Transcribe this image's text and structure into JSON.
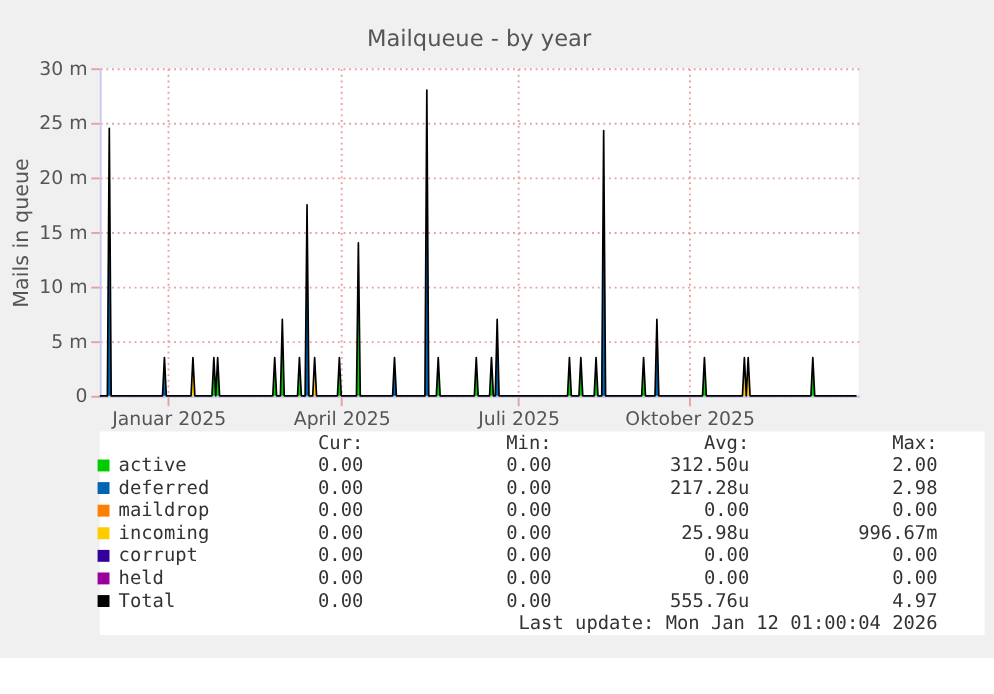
{
  "chart_data": {
    "type": "area",
    "title": "Mailqueue - by year",
    "ylabel": "Mails in queue",
    "xlim": [
      "2024-12-10",
      "2026-01-13"
    ],
    "ylim": [
      0,
      30
    ],
    "xticks": [
      {
        "value": "2025-01-15",
        "label": "Januar 2025"
      },
      {
        "value": "2025-04-16",
        "label": "April 2025"
      },
      {
        "value": "2025-07-18",
        "label": "Juli 2025"
      },
      {
        "value": "2025-10-16",
        "label": "Oktober 2025"
      }
    ],
    "yticks": [
      0,
      {
        "value": 5,
        "label": "5 m"
      },
      {
        "value": 10,
        "label": "10 m"
      },
      {
        "value": 15,
        "label": "15 m"
      },
      {
        "value": 20,
        "label": "20 m"
      },
      {
        "value": 25,
        "label": "25 m"
      },
      {
        "value": 30,
        "label": "30 m"
      }
    ],
    "grid": true,
    "legend": "bottom",
    "marker": "none",
    "line_style": "solid",
    "series": [
      {
        "name": "active",
        "color": "#00cc00",
        "x": [
          "2025-02-07",
          "2025-02-08",
          "2025-02-09",
          "2025-02-10",
          "2025-02-11",
          "2025-03-11",
          "2025-03-12",
          "2025-03-13",
          "2025-03-15",
          "2025-03-16",
          "2025-03-17",
          "2025-03-24",
          "2025-03-25",
          "2025-03-26",
          "2025-04-14",
          "2025-04-15",
          "2025-04-16",
          "2025-04-24",
          "2025-04-25",
          "2025-04-26",
          "2025-06-05",
          "2025-06-06",
          "2025-06-07",
          "2025-06-25",
          "2025-06-26",
          "2025-06-27",
          "2025-07-03",
          "2025-07-04",
          "2025-07-05",
          "2025-08-13",
          "2025-08-14",
          "2025-08-15",
          "2025-08-19",
          "2025-08-20",
          "2025-08-21",
          "2025-08-27",
          "2025-08-28",
          "2025-08-29",
          "2025-09-21",
          "2025-09-22",
          "2025-09-23",
          "2025-10-23",
          "2025-10-24",
          "2025-10-25",
          "2025-12-19",
          "2025-12-20",
          "2025-12-21"
        ],
        "values": [
          0,
          3.5,
          0,
          3.5,
          0,
          0,
          3.5,
          0,
          0,
          7,
          0,
          0,
          3.5,
          0,
          0,
          3.5,
          0,
          0,
          14,
          0,
          0,
          3.5,
          0,
          0,
          3.5,
          0,
          0,
          3.5,
          0,
          0,
          3.5,
          0,
          0,
          3.5,
          0,
          0,
          3.5,
          0,
          0,
          3.5,
          0,
          0,
          3.5,
          0,
          0,
          3.5,
          0
        ]
      },
      {
        "name": "deferred",
        "color": "#0066b3",
        "x": [
          "2024-12-14",
          "2024-12-15",
          "2024-12-16",
          "2025-01-12",
          "2025-01-13",
          "2025-01-14",
          "2025-03-28",
          "2025-03-29",
          "2025-03-30",
          "2025-05-13",
          "2025-05-14",
          "2025-05-15",
          "2025-05-30",
          "2025-05-31",
          "2025-06-01",
          "2025-07-06",
          "2025-07-07",
          "2025-07-08",
          "2025-08-31",
          "2025-09-01",
          "2025-09-02",
          "2025-09-28",
          "2025-09-29",
          "2025-09-30"
        ],
        "values": [
          0,
          24.5,
          0,
          0,
          3.5,
          0,
          0,
          17.5,
          0,
          0,
          3.5,
          0,
          0,
          28,
          0,
          0,
          7,
          0,
          0,
          24.3,
          0,
          0,
          7,
          0
        ]
      },
      {
        "name": "maildrop",
        "color": "#ff8000"
      },
      {
        "name": "incoming",
        "color": "#ffcc00",
        "x": [
          "2025-01-27",
          "2025-01-28",
          "2025-01-29",
          "2025-04-01",
          "2025-04-02",
          "2025-04-03",
          "2025-11-13",
          "2025-11-14",
          "2025-11-15",
          "2025-11-16",
          "2025-11-17"
        ],
        "values": [
          0,
          3.5,
          0,
          0,
          3.5,
          0,
          0,
          3.5,
          0,
          3.5,
          0
        ]
      },
      {
        "name": "corrupt",
        "color": "#330099"
      },
      {
        "name": "held",
        "color": "#990099"
      },
      {
        "name": "Total",
        "color": "#000000",
        "type": "line",
        "x": [
          "2024-12-10",
          "2024-12-14",
          "2024-12-15",
          "2024-12-16",
          "2025-01-12",
          "2025-01-13",
          "2025-01-14",
          "2025-01-27",
          "2025-01-28",
          "2025-01-29",
          "2025-02-07",
          "2025-02-08",
          "2025-02-09",
          "2025-02-10",
          "2025-02-11",
          "2025-03-11",
          "2025-03-12",
          "2025-03-13",
          "2025-03-15",
          "2025-03-16",
          "2025-03-17",
          "2025-03-24",
          "2025-03-25",
          "2025-03-26",
          "2025-03-28",
          "2025-03-29",
          "2025-03-30",
          "2025-04-01",
          "2025-04-02",
          "2025-04-03",
          "2025-04-14",
          "2025-04-15",
          "2025-04-16",
          "2025-04-24",
          "2025-04-25",
          "2025-04-26",
          "2025-05-13",
          "2025-05-14",
          "2025-05-15",
          "2025-05-30",
          "2025-05-31",
          "2025-06-01",
          "2025-06-05",
          "2025-06-06",
          "2025-06-07",
          "2025-06-25",
          "2025-06-26",
          "2025-06-27",
          "2025-07-03",
          "2025-07-04",
          "2025-07-05",
          "2025-07-06",
          "2025-07-07",
          "2025-07-08",
          "2025-08-13",
          "2025-08-14",
          "2025-08-15",
          "2025-08-19",
          "2025-08-20",
          "2025-08-21",
          "2025-08-27",
          "2025-08-28",
          "2025-08-29",
          "2025-08-31",
          "2025-09-01",
          "2025-09-02",
          "2025-09-21",
          "2025-09-22",
          "2025-09-23",
          "2025-09-28",
          "2025-09-29",
          "2025-09-30",
          "2025-10-23",
          "2025-10-24",
          "2025-10-25",
          "2025-11-13",
          "2025-11-14",
          "2025-11-15",
          "2025-11-16",
          "2025-11-17",
          "2025-12-19",
          "2025-12-20",
          "2025-12-21",
          "2026-01-12"
        ],
        "values": [
          0,
          0,
          24.5,
          0,
          0,
          3.5,
          0,
          0,
          3.5,
          0,
          0,
          3.5,
          0,
          3.5,
          0,
          0,
          3.5,
          0,
          0,
          7,
          0,
          0,
          3.5,
          0,
          0,
          17.5,
          0,
          0,
          3.5,
          0,
          0,
          3.5,
          0,
          0,
          14,
          0,
          0,
          3.5,
          0,
          0,
          28,
          0,
          0,
          3.5,
          0,
          0,
          3.5,
          0,
          0,
          3.5,
          0,
          0,
          7,
          0,
          0,
          3.5,
          0,
          0,
          3.5,
          0,
          0,
          3.5,
          0,
          0,
          24.3,
          0,
          0,
          3.5,
          0,
          0,
          7,
          0,
          0,
          3.5,
          0,
          0,
          3.5,
          0,
          3.5,
          0,
          0,
          3.5,
          0,
          0
        ]
      }
    ],
    "annotations": [
      "Cur:",
      "Min:",
      "Avg:",
      "Max:",
      "0.00",
      "0.00",
      "312.50u",
      "2.00",
      "0.00",
      "0.00",
      "217.28u",
      "2.98",
      "0.00",
      "0.00",
      "0.00",
      "0.00",
      "0.00",
      "0.00",
      "25.98u",
      "996.67m",
      "0.00",
      "0.00",
      "0.00",
      "0.00",
      "0.00",
      "0.00",
      "0.00",
      "0.00",
      "0.00",
      "0.00",
      "555.76u",
      "4.97",
      "Last update: Mon Jan 12 01:00:04 2026"
    ]
  }
}
